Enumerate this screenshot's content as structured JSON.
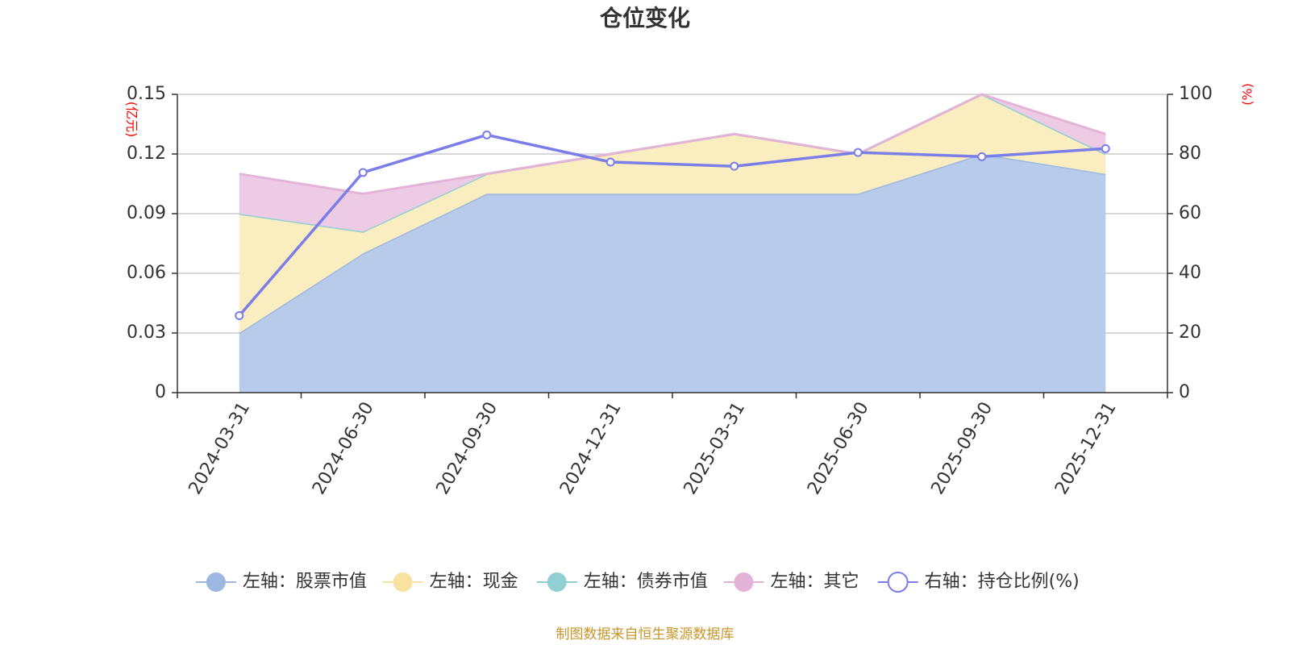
{
  "chart_data": {
    "type": "area",
    "title": "仓位变化",
    "categories": [
      "2024-03-31",
      "2024-06-30",
      "2024-09-30",
      "2024-12-31",
      "2025-03-31",
      "2025-06-30",
      "2025-09-30",
      "2025-12-31"
    ],
    "left_axis": {
      "unit": "(亿元)",
      "min": 0,
      "max": 0.15,
      "ticks": [
        "0",
        "0.03",
        "0.06",
        "0.09",
        "0.12",
        "0.15"
      ]
    },
    "right_axis": {
      "unit": "(%)",
      "min": 0,
      "max": 100,
      "ticks": [
        "0",
        "20",
        "40",
        "60",
        "80",
        "100"
      ]
    },
    "stack_series": [
      {
        "name": "左轴：股票市值",
        "color": "#9db8e0",
        "fill": "#b8cbea",
        "values": [
          0.03,
          0.07,
          0.1,
          0.1,
          0.1,
          0.1,
          0.12,
          0.11
        ]
      },
      {
        "name": "左轴：现金",
        "color": "#f7e2a0",
        "fill": "#faeec0",
        "values": [
          0.06,
          0.011,
          0.01,
          0.02,
          0.03,
          0.02,
          0.03,
          0.01
        ]
      },
      {
        "name": "左轴：债券市值",
        "color": "#90d0d4",
        "fill": "#b4e1e3",
        "values": [
          0,
          0,
          0,
          0,
          0,
          0,
          0,
          0
        ]
      },
      {
        "name": "左轴：其它",
        "color": "#e4b4d8",
        "fill": "#eecbe4",
        "values": [
          0.02,
          0.019,
          0,
          0,
          0,
          0,
          0,
          0.01
        ]
      }
    ],
    "line_series": {
      "name": "右轴：持仓比例(%)",
      "color": "#7b7ee8",
      "values": [
        25.8,
        73.8,
        86.4,
        77.3,
        75.9,
        80.5,
        79.1,
        81.8
      ]
    },
    "source": "制图数据来自恒生聚源数据库"
  }
}
